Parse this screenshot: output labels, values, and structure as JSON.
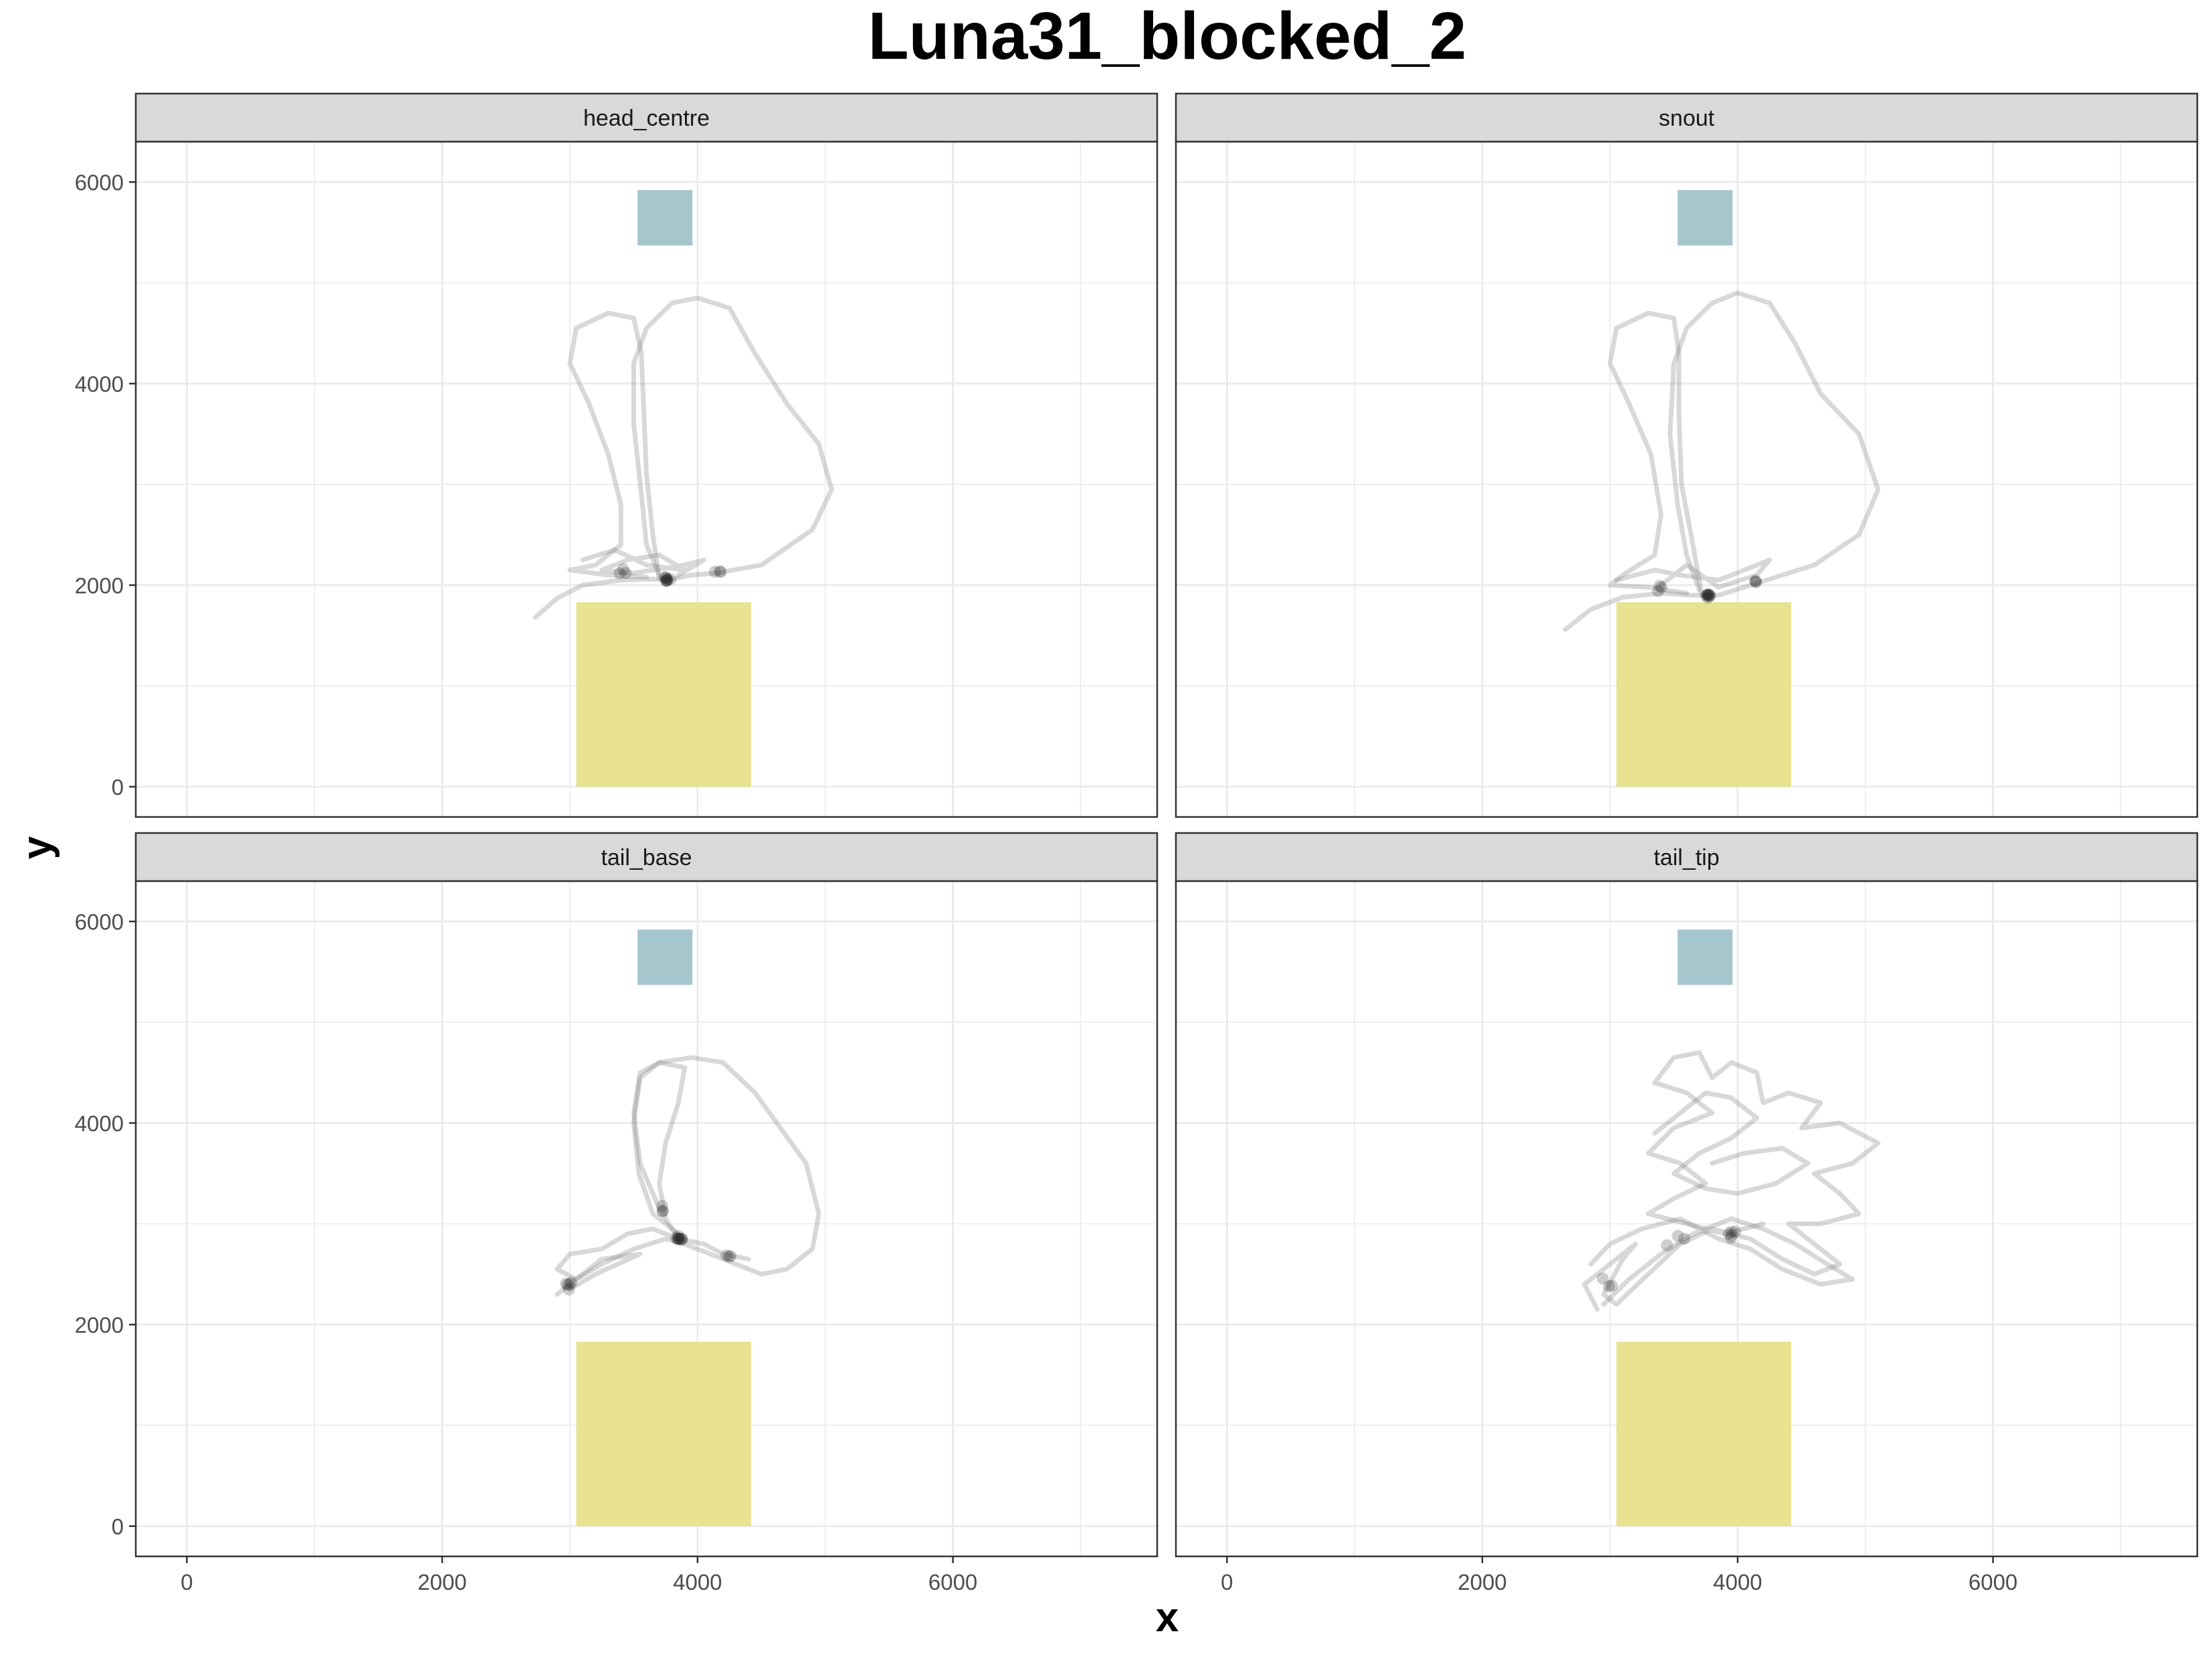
{
  "chart_data": {
    "type": "scatter",
    "title": "Luna31_blocked_2",
    "xlabel": "x",
    "ylabel": "y",
    "xlim": [
      -400,
      7600
    ],
    "ylim": [
      -300,
      6400
    ],
    "x_ticks": [
      0,
      2000,
      4000,
      6000
    ],
    "y_ticks": [
      0,
      2000,
      4000,
      6000
    ],
    "grid": true,
    "layout": "2x2 facets",
    "colors": {
      "zone_yellow": "#e8e291",
      "zone_blue": "#a6c6cd",
      "track": "#7d7d7d",
      "strip_bg": "#d9d9d9",
      "grid": "#ebebeb"
    },
    "zones": [
      {
        "name": "blue-zone",
        "x0": 3530,
        "x1": 3960,
        "y0": 5370,
        "y1": 5920,
        "color": "#a6c6cd"
      },
      {
        "name": "yellow-zone",
        "x0": 3050,
        "x1": 4420,
        "y0": 0,
        "y1": 1830,
        "color": "#e8e291"
      }
    ],
    "panels": [
      {
        "name": "head_centre",
        "paths": [
          [
            [
              2730,
              1680
            ],
            [
              2900,
              1870
            ],
            [
              3100,
              2000
            ],
            [
              3400,
              2050
            ],
            [
              3650,
              2060
            ],
            [
              3800,
              2060
            ],
            [
              3950,
              2100
            ],
            [
              4150,
              2120
            ],
            [
              4500,
              2200
            ],
            [
              4900,
              2550
            ],
            [
              5050,
              2950
            ],
            [
              4950,
              3400
            ],
            [
              4700,
              3800
            ],
            [
              4450,
              4300
            ],
            [
              4250,
              4750
            ],
            [
              4000,
              4850
            ],
            [
              3800,
              4800
            ],
            [
              3600,
              4550
            ],
            [
              3500,
              4200
            ],
            [
              3500,
              3600
            ],
            [
              3560,
              2900
            ],
            [
              3600,
              2400
            ],
            [
              3700,
              2100
            ]
          ],
          [
            [
              3700,
              2060
            ],
            [
              3650,
              2500
            ],
            [
              3600,
              3100
            ],
            [
              3580,
              3700
            ],
            [
              3560,
              4300
            ],
            [
              3500,
              4650
            ],
            [
              3300,
              4700
            ],
            [
              3050,
              4550
            ],
            [
              3000,
              4200
            ],
            [
              3150,
              3800
            ],
            [
              3300,
              3300
            ],
            [
              3400,
              2800
            ],
            [
              3400,
              2400
            ],
            [
              3200,
              2200
            ],
            [
              3000,
              2150
            ],
            [
              3300,
              2100
            ],
            [
              3600,
              2080
            ]
          ],
          [
            [
              3100,
              2250
            ],
            [
              3350,
              2350
            ],
            [
              3600,
              2200
            ],
            [
              3900,
              2150
            ],
            [
              3700,
              2300
            ],
            [
              3450,
              2250
            ],
            [
              3250,
              2150
            ],
            [
              3500,
              2120
            ],
            [
              3900,
              2200
            ],
            [
              4050,
              2250
            ],
            [
              3850,
              2100
            ]
          ]
        ],
        "clusters": [
          {
            "x": 3760,
            "y": 2060,
            "n": 9,
            "spread": 30
          },
          {
            "x": 3400,
            "y": 2140,
            "n": 3,
            "spread": 50
          },
          {
            "x": 4150,
            "y": 2150,
            "n": 3,
            "spread": 40
          }
        ]
      },
      {
        "name": "snout",
        "paths": [
          [
            [
              2650,
              1560
            ],
            [
              2850,
              1760
            ],
            [
              3100,
              1880
            ],
            [
              3400,
              1920
            ],
            [
              3650,
              1900
            ],
            [
              3850,
              1900
            ],
            [
              4050,
              1980
            ],
            [
              4350,
              2100
            ],
            [
              4600,
              2200
            ],
            [
              4950,
              2500
            ],
            [
              5100,
              2950
            ],
            [
              4950,
              3500
            ],
            [
              4650,
              3900
            ],
            [
              4450,
              4400
            ],
            [
              4250,
              4800
            ],
            [
              4000,
              4900
            ],
            [
              3800,
              4800
            ],
            [
              3600,
              4550
            ],
            [
              3500,
              4200
            ],
            [
              3470,
              3500
            ],
            [
              3530,
              2800
            ],
            [
              3600,
              2300
            ],
            [
              3700,
              1950
            ]
          ],
          [
            [
              3720,
              1900
            ],
            [
              3650,
              2400
            ],
            [
              3560,
              3000
            ],
            [
              3540,
              3700
            ],
            [
              3540,
              4300
            ],
            [
              3500,
              4650
            ],
            [
              3300,
              4700
            ],
            [
              3050,
              4550
            ],
            [
              3000,
              4200
            ],
            [
              3150,
              3800
            ],
            [
              3320,
              3300
            ],
            [
              3400,
              2700
            ],
            [
              3350,
              2300
            ],
            [
              3100,
              2100
            ],
            [
              3000,
              2000
            ],
            [
              3300,
              1980
            ],
            [
              3600,
              1920
            ]
          ],
          [
            [
              3050,
              2050
            ],
            [
              3350,
              2150
            ],
            [
              3550,
              2100
            ],
            [
              3850,
              2050
            ],
            [
              4050,
              2150
            ],
            [
              4250,
              2250
            ],
            [
              4150,
              2100
            ],
            [
              3850,
              1980
            ],
            [
              3600,
              2200
            ],
            [
              3400,
              2000
            ]
          ]
        ],
        "clusters": [
          {
            "x": 3770,
            "y": 1900,
            "n": 9,
            "spread": 30
          },
          {
            "x": 3400,
            "y": 1980,
            "n": 3,
            "spread": 50
          },
          {
            "x": 4150,
            "y": 2030,
            "n": 3,
            "spread": 40
          }
        ]
      },
      {
        "name": "tail_base",
        "paths": [
          [
            [
              2900,
              2300
            ],
            [
              3050,
              2450
            ],
            [
              3250,
              2600
            ],
            [
              3500,
              2750
            ],
            [
              3750,
              2850
            ],
            [
              3900,
              2800
            ],
            [
              4100,
              2700
            ],
            [
              4300,
              2600
            ],
            [
              4500,
              2500
            ],
            [
              4700,
              2550
            ],
            [
              4900,
              2750
            ],
            [
              4950,
              3100
            ],
            [
              4850,
              3600
            ],
            [
              4650,
              3950
            ],
            [
              4450,
              4300
            ],
            [
              4200,
              4600
            ],
            [
              3950,
              4650
            ],
            [
              3700,
              4600
            ],
            [
              3550,
              4450
            ],
            [
              3500,
              4000
            ],
            [
              3540,
              3500
            ],
            [
              3650,
              3100
            ],
            [
              3850,
              2900
            ]
          ],
          [
            [
              3850,
              2850
            ],
            [
              3700,
              3150
            ],
            [
              3550,
              3600
            ],
            [
              3500,
              4100
            ],
            [
              3550,
              4500
            ],
            [
              3700,
              4600
            ],
            [
              3900,
              4550
            ],
            [
              3850,
              4200
            ],
            [
              3750,
              3800
            ],
            [
              3700,
              3400
            ],
            [
              3750,
              3050
            ]
          ],
          [
            [
              3000,
              2350
            ],
            [
              3200,
              2500
            ],
            [
              3550,
              2700
            ],
            [
              3250,
              2650
            ],
            [
              3050,
              2450
            ],
            [
              2900,
              2550
            ],
            [
              3000,
              2700
            ],
            [
              3250,
              2750
            ],
            [
              3450,
              2900
            ],
            [
              3650,
              2950
            ],
            [
              3850,
              2850
            ],
            [
              4050,
              2800
            ],
            [
              4200,
              2700
            ],
            [
              4400,
              2650
            ]
          ]
        ],
        "clusters": [
          {
            "x": 3860,
            "y": 2860,
            "n": 9,
            "spread": 40
          },
          {
            "x": 2980,
            "y": 2390,
            "n": 5,
            "spread": 50
          },
          {
            "x": 4250,
            "y": 2680,
            "n": 3,
            "spread": 40
          },
          {
            "x": 3700,
            "y": 3150,
            "n": 3,
            "spread": 40
          }
        ]
      },
      {
        "name": "tail_tip",
        "paths": [
          [
            [
              2900,
              2150
            ],
            [
              2800,
              2400
            ],
            [
              3000,
              2600
            ],
            [
              3200,
              2800
            ],
            [
              3100,
              2650
            ],
            [
              2950,
              2300
            ],
            [
              3050,
              2200
            ],
            [
              3300,
              2500
            ],
            [
              3550,
              2800
            ],
            [
              3800,
              2950
            ],
            [
              4100,
              2850
            ],
            [
              4350,
              2650
            ],
            [
              4600,
              2500
            ],
            [
              4800,
              2600
            ],
            [
              4600,
              2800
            ],
            [
              4400,
              3000
            ],
            [
              4650,
              3000
            ],
            [
              4950,
              3100
            ],
            [
              4800,
              3300
            ],
            [
              4600,
              3500
            ],
            [
              4900,
              3600
            ],
            [
              5100,
              3800
            ],
            [
              4800,
              4000
            ],
            [
              4500,
              3950
            ],
            [
              4650,
              4200
            ],
            [
              4400,
              4300
            ],
            [
              4200,
              4200
            ],
            [
              4150,
              4500
            ],
            [
              3950,
              4600
            ],
            [
              3800,
              4450
            ],
            [
              3700,
              4700
            ],
            [
              3500,
              4650
            ],
            [
              3350,
              4400
            ],
            [
              3600,
              4300
            ],
            [
              3800,
              4100
            ],
            [
              3500,
              3950
            ],
            [
              3300,
              3700
            ],
            [
              3550,
              3600
            ],
            [
              3750,
              3400
            ],
            [
              3500,
              3250
            ],
            [
              3300,
              3100
            ],
            [
              3600,
              3000
            ],
            [
              3900,
              2900
            ],
            [
              4200,
              3000
            ]
          ],
          [
            [
              2950,
              2200
            ],
            [
              3150,
              2450
            ],
            [
              3400,
              2700
            ],
            [
              3650,
              2900
            ],
            [
              3950,
              3050
            ],
            [
              4200,
              2950
            ],
            [
              4450,
              2800
            ],
            [
              4700,
              2600
            ],
            [
              4900,
              2450
            ],
            [
              4650,
              2400
            ],
            [
              4350,
              2550
            ],
            [
              4100,
              2750
            ],
            [
              3850,
              2850
            ],
            [
              3550,
              3050
            ],
            [
              3250,
              2950
            ],
            [
              3000,
              2800
            ],
            [
              2850,
              2600
            ]
          ],
          [
            [
              3350,
              3900
            ],
            [
              3550,
              4100
            ],
            [
              3750,
              4300
            ],
            [
              3950,
              4250
            ],
            [
              4150,
              4050
            ],
            [
              3950,
              3850
            ],
            [
              3700,
              3700
            ],
            [
              3500,
              3500
            ],
            [
              3750,
              3350
            ],
            [
              4000,
              3300
            ],
            [
              4300,
              3400
            ],
            [
              4550,
              3600
            ],
            [
              4350,
              3750
            ],
            [
              4050,
              3700
            ],
            [
              3800,
              3600
            ]
          ]
        ],
        "clusters": [
          {
            "x": 3950,
            "y": 2920,
            "n": 5,
            "spread": 120
          },
          {
            "x": 3000,
            "y": 2400,
            "n": 3,
            "spread": 90
          },
          {
            "x": 3500,
            "y": 2850,
            "n": 3,
            "spread": 90
          }
        ]
      }
    ]
  }
}
